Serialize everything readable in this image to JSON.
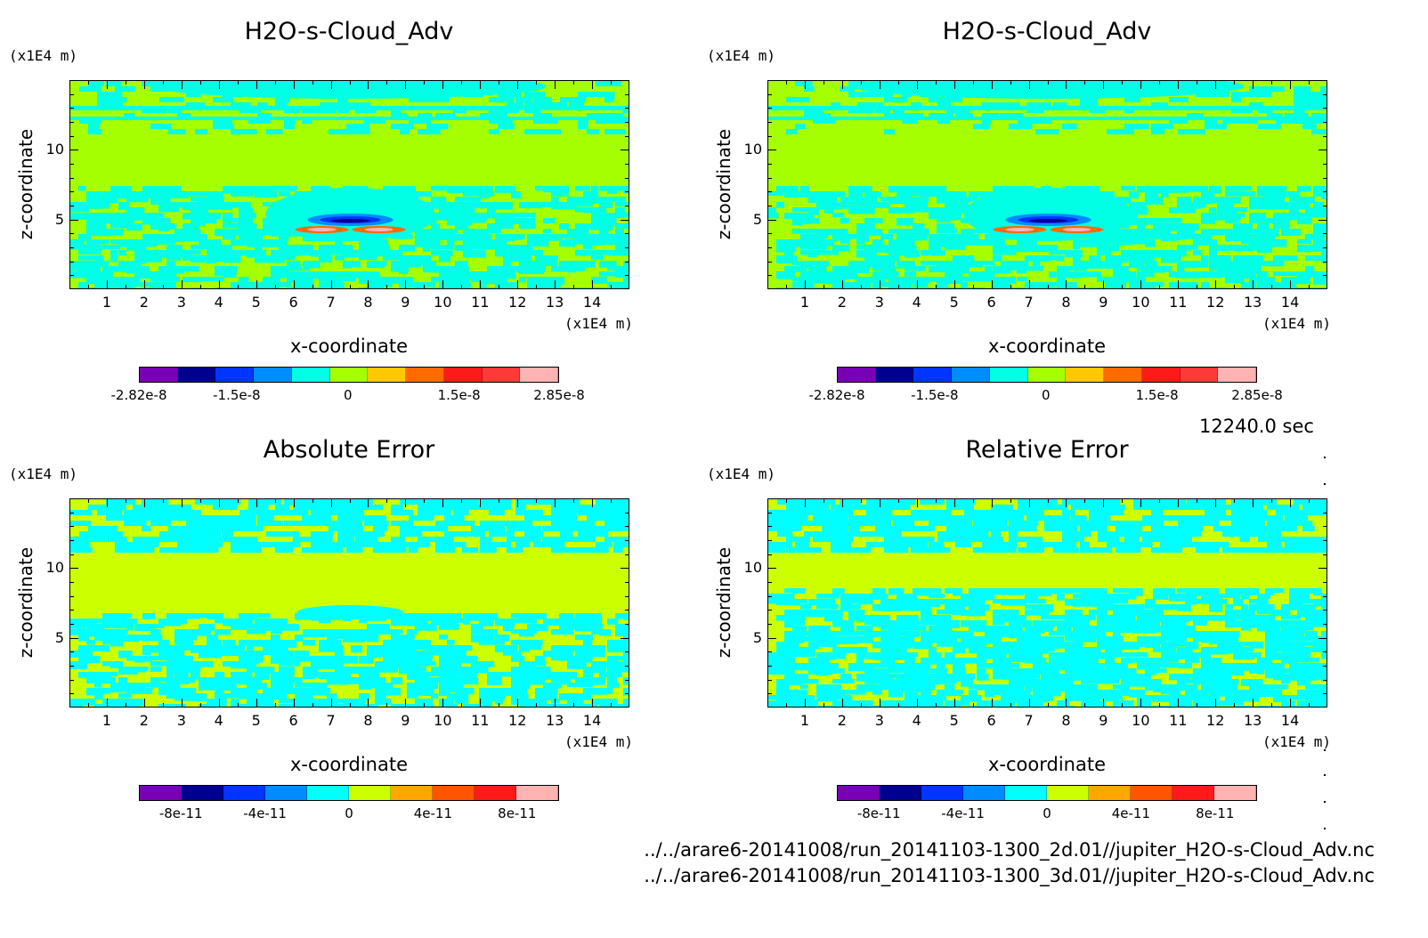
{
  "time_label": "12240.0 sec",
  "footer": {
    "line1": "../../arare6-20141008/run_20141103-1300_2d.01//jupiter_H2O-s-Cloud_Adv.nc",
    "line2": "../../arare6-20141008/run_20141103-1300_3d.01//jupiter_H2O-s-Cloud_Adv.nc"
  },
  "colors": {
    "palette": [
      "#7a00b5",
      "#00008f",
      "#0035ff",
      "#008cff",
      "#00ffe4",
      "#a6ff00",
      "#ffc800",
      "#ff6a00",
      "#ff1a1a",
      "#ff3838",
      "#ffb3b3"
    ],
    "error_palette": [
      "#7a00b5",
      "#00008f",
      "#0035ff",
      "#008cff",
      "#00ffff",
      "#ccff00",
      "#ffa600",
      "#ff5500",
      "#ff1a1a",
      "#ffb3b3"
    ]
  },
  "chart_data": [
    {
      "type": "heatmap",
      "title": "H2O-s-Cloud_Adv",
      "xlabel": "x-coordinate",
      "ylabel": "z-coordinate",
      "x_unit": "(x1E4 m)",
      "y_unit": "(x1E4 m)",
      "xlim": [
        0,
        15
      ],
      "ylim": [
        0,
        15
      ],
      "xticks": [
        "1",
        "2",
        "3",
        "4",
        "5",
        "6",
        "7",
        "8",
        "9",
        "10",
        "11",
        "12",
        "13",
        "14"
      ],
      "yticks": [
        "5",
        "10"
      ],
      "colorbar": {
        "range": [
          -2.82e-08,
          2.85e-08
        ],
        "labels": [
          "-2.82e-8",
          "-1.5e-8",
          "0",
          "1.5e-8",
          "2.85e-8"
        ]
      }
    },
    {
      "type": "heatmap",
      "title": "H2O-s-Cloud_Adv",
      "xlabel": "x-coordinate",
      "ylabel": "z-coordinate",
      "x_unit": "(x1E4 m)",
      "y_unit": "(x1E4 m)",
      "xlim": [
        0,
        15
      ],
      "ylim": [
        0,
        15
      ],
      "xticks": [
        "1",
        "2",
        "3",
        "4",
        "5",
        "6",
        "7",
        "8",
        "9",
        "10",
        "11",
        "12",
        "13",
        "14"
      ],
      "yticks": [
        "5",
        "10"
      ],
      "colorbar": {
        "range": [
          -2.82e-08,
          2.85e-08
        ],
        "labels": [
          "-2.82e-8",
          "-1.5e-8",
          "0",
          "1.5e-8",
          "2.85e-8"
        ]
      }
    },
    {
      "type": "heatmap",
      "title": "Absolute Error",
      "xlabel": "x-coordinate",
      "ylabel": "z-coordinate",
      "x_unit": "(x1E4 m)",
      "y_unit": "(x1E4 m)",
      "xlim": [
        0,
        15
      ],
      "ylim": [
        0,
        15
      ],
      "xticks": [
        "1",
        "2",
        "3",
        "4",
        "5",
        "6",
        "7",
        "8",
        "9",
        "10",
        "11",
        "12",
        "13",
        "14"
      ],
      "yticks": [
        "5",
        "10"
      ],
      "colorbar": {
        "range": [
          -1e-10,
          1e-10
        ],
        "labels": [
          "-8e-11",
          "-4e-11",
          "0",
          "4e-11",
          "8e-11"
        ]
      }
    },
    {
      "type": "heatmap",
      "title": "Relative Error",
      "xlabel": "x-coordinate",
      "ylabel": "z-coordinate",
      "x_unit": "(x1E4 m)",
      "y_unit": "(x1E4 m)",
      "xlim": [
        0,
        15
      ],
      "ylim": [
        0,
        15
      ],
      "xticks": [
        "1",
        "2",
        "3",
        "4",
        "5",
        "6",
        "7",
        "8",
        "9",
        "10",
        "11",
        "12",
        "13",
        "14"
      ],
      "yticks": [
        "5",
        "10"
      ],
      "colorbar": {
        "range": [
          -1e-10,
          1e-10
        ],
        "labels": [
          "-8e-11",
          "-4e-11",
          "0",
          "4e-11",
          "8e-11"
        ]
      }
    }
  ]
}
